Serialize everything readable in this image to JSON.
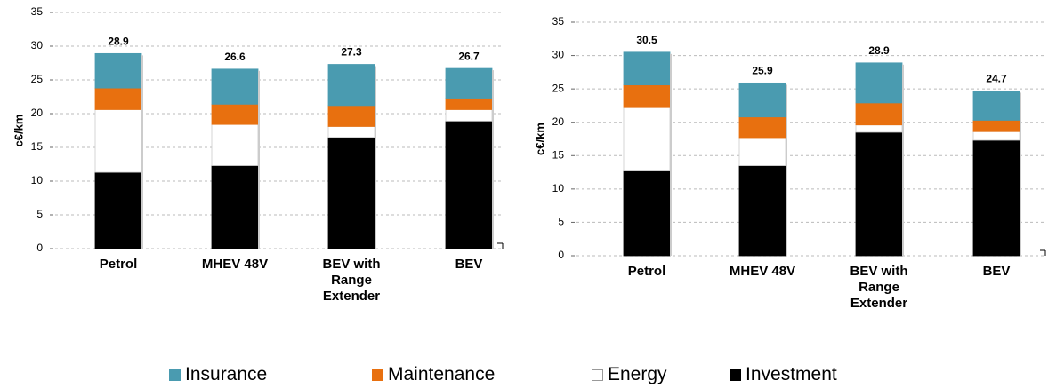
{
  "chart_data": [
    {
      "type": "stacked_bar",
      "y_label": "c€/km",
      "categories": [
        "Petrol",
        "MHEV 48V",
        "BEV with Range Extender",
        "BEV"
      ],
      "series": [
        {
          "name": "Investment",
          "color": "#000000",
          "values": [
            11.3,
            12.3,
            16.5,
            18.9
          ]
        },
        {
          "name": "Energy",
          "color": "#ffffff",
          "values": [
            9.3,
            6.1,
            1.6,
            1.7
          ]
        },
        {
          "name": "Maintenance",
          "color": "#e8700f",
          "values": [
            3.2,
            3.0,
            3.1,
            1.7
          ]
        },
        {
          "name": "Insurance",
          "color": "#4a9bb0",
          "values": [
            5.1,
            5.2,
            6.1,
            4.4
          ]
        }
      ],
      "totals": [
        28.9,
        26.6,
        27.3,
        26.7
      ],
      "ylim": [
        0,
        35
      ],
      "yticks": [
        0,
        5,
        10,
        15,
        20,
        25,
        30,
        35
      ],
      "grid": true
    },
    {
      "type": "stacked_bar",
      "y_label": "c€/km",
      "categories": [
        "Petrol",
        "MHEV 48V",
        "BEV with Range Extender",
        "BEV"
      ],
      "series": [
        {
          "name": "Investment",
          "color": "#000000",
          "values": [
            12.7,
            13.5,
            18.5,
            17.3
          ]
        },
        {
          "name": "Energy",
          "color": "#ffffff",
          "values": [
            9.5,
            4.2,
            1.1,
            1.3
          ]
        },
        {
          "name": "Maintenance",
          "color": "#e8700f",
          "values": [
            3.4,
            3.1,
            3.3,
            1.7
          ]
        },
        {
          "name": "Insurance",
          "color": "#4a9bb0",
          "values": [
            4.9,
            5.1,
            6.0,
            4.4
          ]
        }
      ],
      "totals": [
        30.5,
        25.9,
        28.9,
        24.7
      ],
      "ylim": [
        0,
        35
      ],
      "yticks": [
        0,
        5,
        10,
        15,
        20,
        25,
        30,
        35
      ],
      "grid": true
    }
  ]
}
